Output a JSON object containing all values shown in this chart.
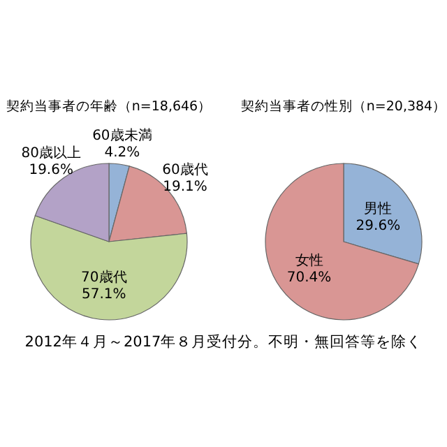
{
  "chart_data": [
    {
      "type": "pie",
      "title": "契約当事者の年齢（n=18,646）",
      "categories": [
        "60歳未満",
        "60歳代",
        "70歳代",
        "80歳以上"
      ],
      "values": [
        4.2,
        19.1,
        57.1,
        19.6
      ],
      "value_labels": [
        "4.2%",
        "19.1%",
        "57.1%",
        "19.6%"
      ],
      "colors": [
        "#95b3d7",
        "#d99694",
        "#c3d69b",
        "#b3a2c7"
      ],
      "annotations": [
        "2012年４月～2017年８月受付分。不明・無回答等を除く"
      ]
    },
    {
      "type": "pie",
      "title": "契約当事者の性別（n=20,384）",
      "categories": [
        "男性",
        "女性"
      ],
      "values": [
        29.6,
        70.4
      ],
      "value_labels": [
        "29.6%",
        "70.4%"
      ],
      "colors": [
        "#95b3d7",
        "#d99694"
      ]
    }
  ]
}
